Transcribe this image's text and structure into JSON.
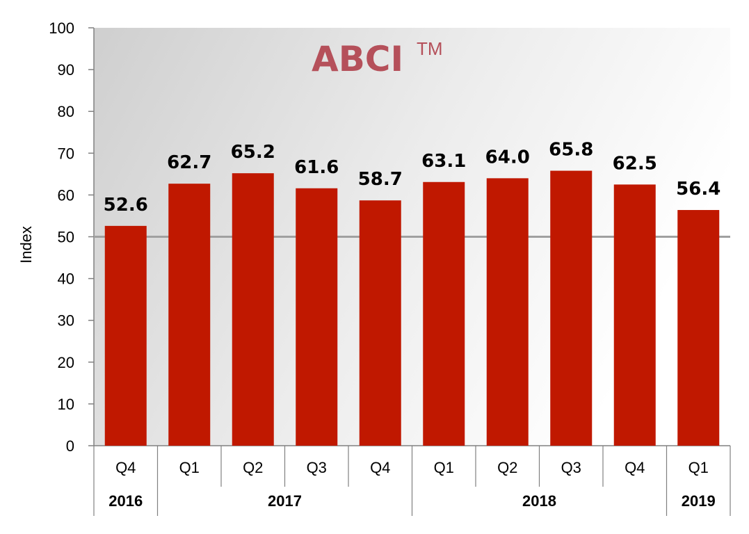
{
  "chart_data": {
    "type": "bar",
    "title": "ABCI",
    "title_mark": "TM",
    "ylabel": "Index",
    "ylim": [
      0,
      100
    ],
    "yticks": [
      "0",
      "10",
      "20",
      "30",
      "40",
      "50",
      "60",
      "70",
      "80",
      "90",
      "100"
    ],
    "reference_line": 50,
    "categories": [
      "Q4",
      "Q1",
      "Q2",
      "Q3",
      "Q4",
      "Q1",
      "Q2",
      "Q3",
      "Q4",
      "Q1"
    ],
    "values": [
      52.6,
      62.7,
      65.2,
      61.6,
      58.7,
      63.1,
      64.0,
      65.8,
      62.5,
      56.4
    ],
    "value_labels": [
      "52.6",
      "62.7",
      "65.2",
      "61.6",
      "58.7",
      "63.1",
      "64.0",
      "65.8",
      "62.5",
      "56.4"
    ],
    "year_groups": [
      {
        "label": "2016",
        "count": 1
      },
      {
        "label": "2017",
        "count": 4
      },
      {
        "label": "2018",
        "count": 4
      },
      {
        "label": "2019",
        "count": 1
      }
    ],
    "grid": false,
    "legend": "none"
  },
  "colors": {
    "bar": "#c01800",
    "title": "#b5505a",
    "reference_line": "#a0a0a0"
  }
}
